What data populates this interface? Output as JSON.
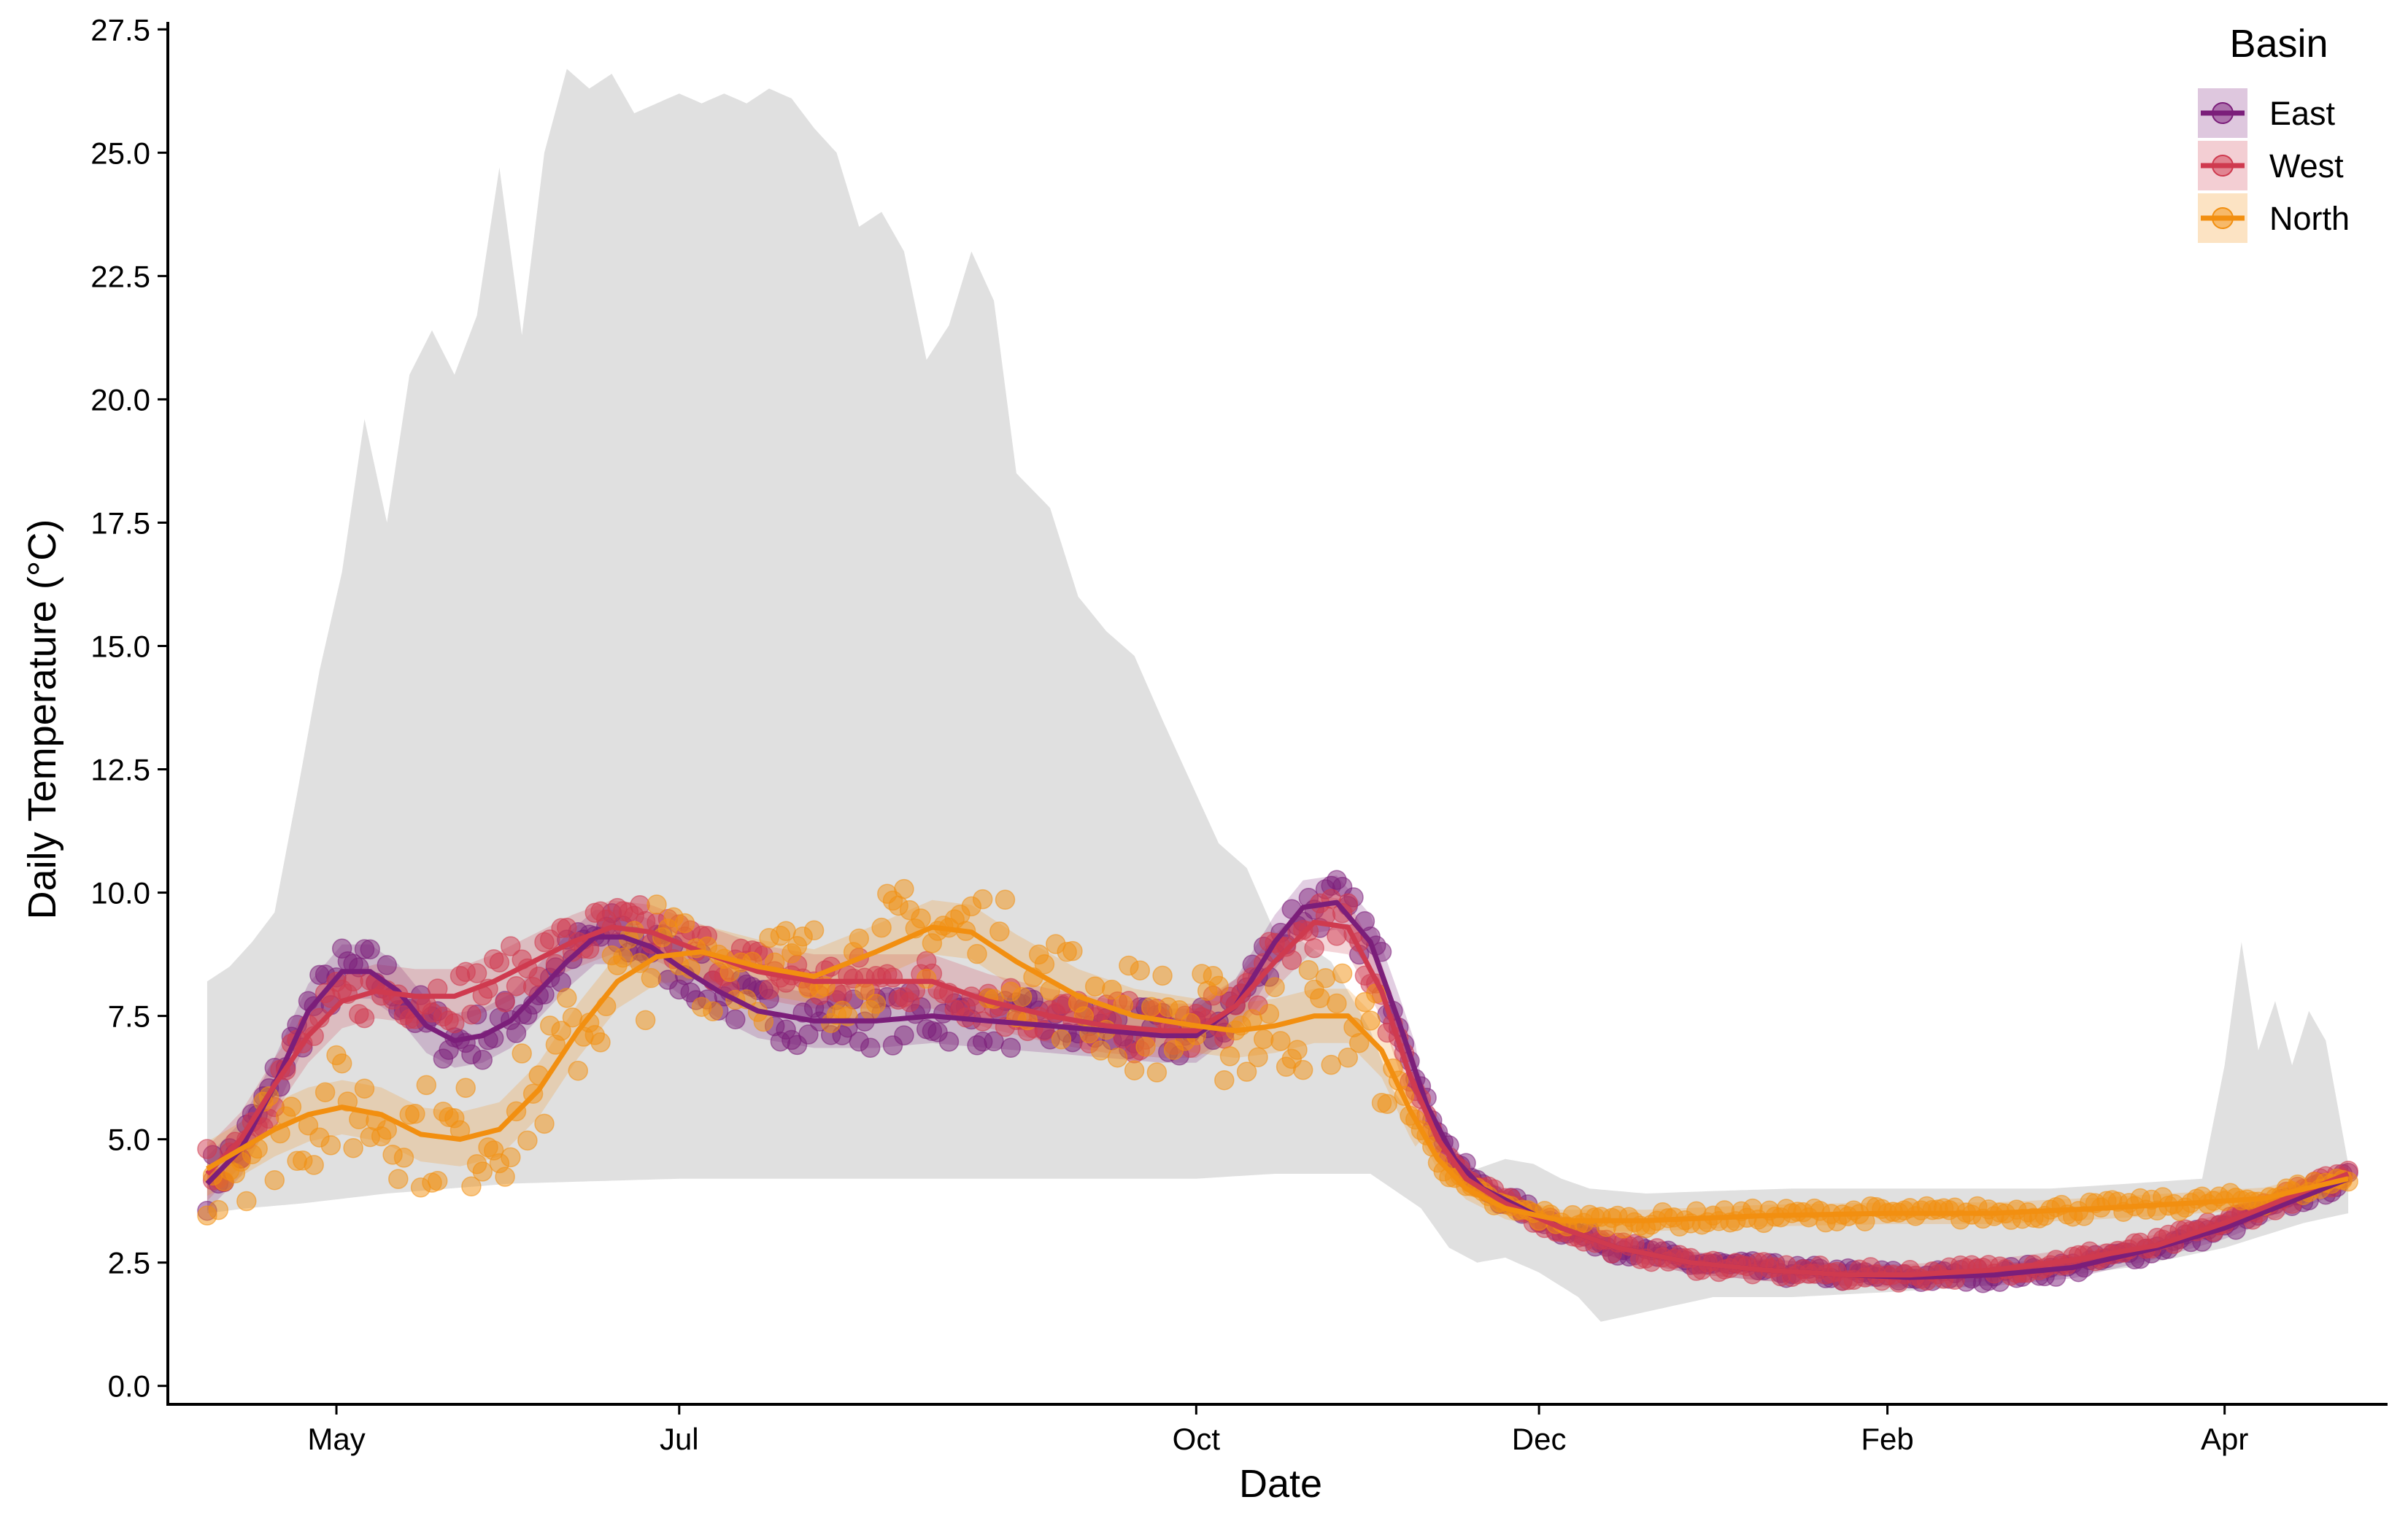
{
  "chart_data": {
    "type": "scatter",
    "xlabel": "Date",
    "ylabel": "Daily Temperature (°C)",
    "x_type": "date",
    "x_range": [
      "2019-04-01",
      "2020-04-30"
    ],
    "x_ticks": [
      {
        "date": "2019-05-01",
        "label": "May"
      },
      {
        "date": "2019-07-01",
        "label": "Jul"
      },
      {
        "date": "2019-10-01",
        "label": "Oct"
      },
      {
        "date": "2019-12-01",
        "label": "Dec"
      },
      {
        "date": "2020-02-01",
        "label": "Feb"
      },
      {
        "date": "2020-04-01",
        "label": "Apr"
      }
    ],
    "ylim": [
      -0.3,
      27.8
    ],
    "y_ticks": [
      "0.0",
      "2.5",
      "5.0",
      "7.5",
      "10.0",
      "12.5",
      "15.0",
      "17.5",
      "20.0",
      "22.5",
      "25.0",
      "27.5"
    ],
    "grid": false,
    "legend": {
      "title": "Basin",
      "position": "top-right"
    },
    "colors": {
      "East": "#7b1e7a",
      "West": "#cf3a4f",
      "North": "#f28f10",
      "range_band": "#e0e0e0"
    },
    "range_band": {
      "description": "Air temperature range (min to max)",
      "upper": [
        [
          "2019-04-08",
          8.2
        ],
        [
          "2019-04-12",
          8.5
        ],
        [
          "2019-04-16",
          9.0
        ],
        [
          "2019-04-20",
          9.6
        ],
        [
          "2019-04-24",
          12.0
        ],
        [
          "2019-04-28",
          14.5
        ],
        [
          "2019-05-02",
          16.5
        ],
        [
          "2019-05-06",
          19.6
        ],
        [
          "2019-05-10",
          17.5
        ],
        [
          "2019-05-14",
          20.5
        ],
        [
          "2019-05-18",
          21.4
        ],
        [
          "2019-05-22",
          20.5
        ],
        [
          "2019-05-26",
          21.7
        ],
        [
          "2019-05-30",
          24.7
        ],
        [
          "2019-06-03",
          21.3
        ],
        [
          "2019-06-07",
          25.0
        ],
        [
          "2019-06-11",
          26.7
        ],
        [
          "2019-06-15",
          26.3
        ],
        [
          "2019-06-19",
          26.6
        ],
        [
          "2019-06-23",
          25.8
        ],
        [
          "2019-06-27",
          26.0
        ],
        [
          "2019-07-01",
          26.2
        ],
        [
          "2019-07-05",
          26.0
        ],
        [
          "2019-07-09",
          26.2
        ],
        [
          "2019-07-13",
          26.0
        ],
        [
          "2019-07-17",
          26.3
        ],
        [
          "2019-07-21",
          26.1
        ],
        [
          "2019-07-25",
          25.5
        ],
        [
          "2019-07-29",
          25.0
        ],
        [
          "2019-08-02",
          23.5
        ],
        [
          "2019-08-06",
          23.8
        ],
        [
          "2019-08-10",
          23.0
        ],
        [
          "2019-08-14",
          20.8
        ],
        [
          "2019-08-18",
          21.5
        ],
        [
          "2019-08-22",
          23.0
        ],
        [
          "2019-08-26",
          22.0
        ],
        [
          "2019-08-30",
          18.5
        ],
        [
          "2019-09-05",
          17.8
        ],
        [
          "2019-09-10",
          16.0
        ],
        [
          "2019-09-15",
          15.3
        ],
        [
          "2019-09-20",
          14.8
        ],
        [
          "2019-09-25",
          13.5
        ],
        [
          "2019-10-01",
          12.0
        ],
        [
          "2019-10-05",
          11.0
        ],
        [
          "2019-10-10",
          10.5
        ],
        [
          "2019-10-15",
          9.2
        ],
        [
          "2019-10-20",
          9.0
        ],
        [
          "2019-10-25",
          8.6
        ],
        [
          "2019-11-01",
          7.2
        ],
        [
          "2019-11-05",
          6.0
        ],
        [
          "2019-11-10",
          5.2
        ],
        [
          "2019-11-15",
          4.6
        ],
        [
          "2019-11-20",
          4.4
        ],
        [
          "2019-11-25",
          4.6
        ],
        [
          "2019-11-30",
          4.5
        ],
        [
          "2019-12-05",
          4.2
        ],
        [
          "2019-12-10",
          4.0
        ],
        [
          "2019-12-20",
          3.9
        ],
        [
          "2020-01-01",
          3.95
        ],
        [
          "2020-01-15",
          4.0
        ],
        [
          "2020-02-01",
          4.0
        ],
        [
          "2020-02-15",
          4.0
        ],
        [
          "2020-03-01",
          4.0
        ],
        [
          "2020-03-15",
          4.1
        ],
        [
          "2020-03-28",
          4.2
        ],
        [
          "2020-04-01",
          6.5
        ],
        [
          "2020-04-04",
          9.0
        ],
        [
          "2020-04-07",
          6.8
        ],
        [
          "2020-04-10",
          7.8
        ],
        [
          "2020-04-13",
          6.5
        ],
        [
          "2020-04-16",
          7.6
        ],
        [
          "2020-04-19",
          7.0
        ],
        [
          "2020-04-23",
          4.5
        ]
      ],
      "lower": [
        [
          "2019-04-08",
          3.5
        ],
        [
          "2019-04-15",
          3.6
        ],
        [
          "2019-04-25",
          3.7
        ],
        [
          "2019-05-10",
          3.9
        ],
        [
          "2019-06-01",
          4.1
        ],
        [
          "2019-07-01",
          4.2
        ],
        [
          "2019-08-01",
          4.2
        ],
        [
          "2019-09-01",
          4.2
        ],
        [
          "2019-10-01",
          4.2
        ],
        [
          "2019-10-15",
          4.3
        ],
        [
          "2019-11-01",
          4.3
        ],
        [
          "2019-11-10",
          3.6
        ],
        [
          "2019-11-15",
          2.8
        ],
        [
          "2019-11-20",
          2.5
        ],
        [
          "2019-11-25",
          2.6
        ],
        [
          "2019-12-01",
          2.3
        ],
        [
          "2019-12-08",
          1.8
        ],
        [
          "2019-12-12",
          1.3
        ],
        [
          "2019-12-20",
          1.5
        ],
        [
          "2020-01-01",
          1.8
        ],
        [
          "2020-01-15",
          1.8
        ],
        [
          "2020-02-01",
          1.9
        ],
        [
          "2020-02-15",
          2.0
        ],
        [
          "2020-03-01",
          2.2
        ],
        [
          "2020-03-15",
          2.4
        ],
        [
          "2020-04-01",
          2.8
        ],
        [
          "2020-04-15",
          3.3
        ],
        [
          "2020-04-23",
          3.5
        ]
      ]
    },
    "series": [
      {
        "name": "East",
        "smooth": [
          [
            "2019-04-08",
            4.1
          ],
          [
            "2019-04-14",
            4.8
          ],
          [
            "2019-04-20",
            6.1
          ],
          [
            "2019-04-26",
            7.6
          ],
          [
            "2019-05-02",
            8.4
          ],
          [
            "2019-05-07",
            8.4
          ],
          [
            "2019-05-12",
            8.0
          ],
          [
            "2019-05-17",
            7.3
          ],
          [
            "2019-05-22",
            7.0
          ],
          [
            "2019-05-27",
            7.1
          ],
          [
            "2019-06-01",
            7.4
          ],
          [
            "2019-06-06",
            8.0
          ],
          [
            "2019-06-11",
            8.6
          ],
          [
            "2019-06-16",
            9.1
          ],
          [
            "2019-06-21",
            9.1
          ],
          [
            "2019-06-26",
            8.9
          ],
          [
            "2019-07-01",
            8.5
          ],
          [
            "2019-07-08",
            8.0
          ],
          [
            "2019-07-15",
            7.6
          ],
          [
            "2019-07-25",
            7.4
          ],
          [
            "2019-08-05",
            7.4
          ],
          [
            "2019-08-15",
            7.5
          ],
          [
            "2019-08-25",
            7.4
          ],
          [
            "2019-09-05",
            7.3
          ],
          [
            "2019-09-15",
            7.2
          ],
          [
            "2019-09-25",
            7.1
          ],
          [
            "2019-10-01",
            7.1
          ],
          [
            "2019-10-08",
            7.7
          ],
          [
            "2019-10-15",
            9.0
          ],
          [
            "2019-10-20",
            9.7
          ],
          [
            "2019-10-26",
            9.8
          ],
          [
            "2019-11-01",
            9.0
          ],
          [
            "2019-11-06",
            7.4
          ],
          [
            "2019-11-11",
            5.7
          ],
          [
            "2019-11-16",
            4.6
          ],
          [
            "2019-11-21",
            4.0
          ],
          [
            "2019-11-28",
            3.6
          ],
          [
            "2019-12-05",
            3.2
          ],
          [
            "2019-12-15",
            2.8
          ],
          [
            "2019-12-28",
            2.5
          ],
          [
            "2020-01-10",
            2.35
          ],
          [
            "2020-01-25",
            2.25
          ],
          [
            "2020-02-05",
            2.2
          ],
          [
            "2020-02-20",
            2.25
          ],
          [
            "2020-03-05",
            2.4
          ],
          [
            "2020-03-20",
            2.8
          ],
          [
            "2020-04-01",
            3.2
          ],
          [
            "2020-04-12",
            3.7
          ],
          [
            "2020-04-23",
            4.2
          ]
        ]
      },
      {
        "name": "West",
        "smooth": [
          [
            "2019-04-08",
            4.3
          ],
          [
            "2019-04-14",
            5.0
          ],
          [
            "2019-04-20",
            6.1
          ],
          [
            "2019-04-26",
            7.1
          ],
          [
            "2019-05-02",
            7.8
          ],
          [
            "2019-05-08",
            8.0
          ],
          [
            "2019-05-15",
            7.9
          ],
          [
            "2019-05-22",
            7.9
          ],
          [
            "2019-05-29",
            8.2
          ],
          [
            "2019-06-05",
            8.6
          ],
          [
            "2019-06-12",
            9.0
          ],
          [
            "2019-06-19",
            9.3
          ],
          [
            "2019-06-26",
            9.2
          ],
          [
            "2019-07-05",
            8.8
          ],
          [
            "2019-07-15",
            8.4
          ],
          [
            "2019-07-25",
            8.2
          ],
          [
            "2019-08-05",
            8.2
          ],
          [
            "2019-08-15",
            8.2
          ],
          [
            "2019-08-25",
            7.8
          ],
          [
            "2019-09-05",
            7.5
          ],
          [
            "2019-09-15",
            7.3
          ],
          [
            "2019-09-25",
            7.2
          ],
          [
            "2019-10-01",
            7.2
          ],
          [
            "2019-10-08",
            7.7
          ],
          [
            "2019-10-15",
            8.6
          ],
          [
            "2019-10-22",
            9.4
          ],
          [
            "2019-10-28",
            9.3
          ],
          [
            "2019-11-03",
            8.0
          ],
          [
            "2019-11-08",
            6.3
          ],
          [
            "2019-11-13",
            5.0
          ],
          [
            "2019-11-18",
            4.2
          ],
          [
            "2019-11-25",
            3.7
          ],
          [
            "2019-12-05",
            3.2
          ],
          [
            "2019-12-15",
            2.8
          ],
          [
            "2019-12-28",
            2.5
          ],
          [
            "2020-01-10",
            2.35
          ],
          [
            "2020-01-25",
            2.25
          ],
          [
            "2020-02-05",
            2.25
          ],
          [
            "2020-02-20",
            2.35
          ],
          [
            "2020-03-05",
            2.55
          ],
          [
            "2020-03-20",
            2.85
          ],
          [
            "2020-04-01",
            3.3
          ],
          [
            "2020-04-12",
            3.8
          ],
          [
            "2020-04-23",
            4.3
          ]
        ]
      },
      {
        "name": "North",
        "smooth": [
          [
            "2019-04-08",
            4.4
          ],
          [
            "2019-04-14",
            4.8
          ],
          [
            "2019-04-20",
            5.2
          ],
          [
            "2019-04-26",
            5.5
          ],
          [
            "2019-05-02",
            5.65
          ],
          [
            "2019-05-09",
            5.5
          ],
          [
            "2019-05-16",
            5.1
          ],
          [
            "2019-05-23",
            5.0
          ],
          [
            "2019-05-30",
            5.2
          ],
          [
            "2019-06-06",
            6.0
          ],
          [
            "2019-06-13",
            7.2
          ],
          [
            "2019-06-20",
            8.2
          ],
          [
            "2019-06-27",
            8.7
          ],
          [
            "2019-07-05",
            8.8
          ],
          [
            "2019-07-15",
            8.5
          ],
          [
            "2019-07-25",
            8.3
          ],
          [
            "2019-08-05",
            8.8
          ],
          [
            "2019-08-15",
            9.3
          ],
          [
            "2019-08-22",
            9.2
          ],
          [
            "2019-08-30",
            8.6
          ],
          [
            "2019-09-10",
            7.9
          ],
          [
            "2019-09-20",
            7.5
          ],
          [
            "2019-10-01",
            7.3
          ],
          [
            "2019-10-08",
            7.2
          ],
          [
            "2019-10-15",
            7.3
          ],
          [
            "2019-10-22",
            7.5
          ],
          [
            "2019-10-28",
            7.5
          ],
          [
            "2019-11-03",
            6.8
          ],
          [
            "2019-11-08",
            5.6
          ],
          [
            "2019-11-13",
            4.6
          ],
          [
            "2019-11-18",
            4.0
          ],
          [
            "2019-11-25",
            3.6
          ],
          [
            "2019-12-05",
            3.35
          ],
          [
            "2019-12-20",
            3.35
          ],
          [
            "2020-01-10",
            3.45
          ],
          [
            "2020-02-01",
            3.5
          ],
          [
            "2020-02-20",
            3.5
          ],
          [
            "2020-03-10",
            3.6
          ],
          [
            "2020-03-25",
            3.7
          ],
          [
            "2020-04-08",
            3.8
          ],
          [
            "2020-04-23",
            4.2
          ]
        ]
      }
    ]
  }
}
